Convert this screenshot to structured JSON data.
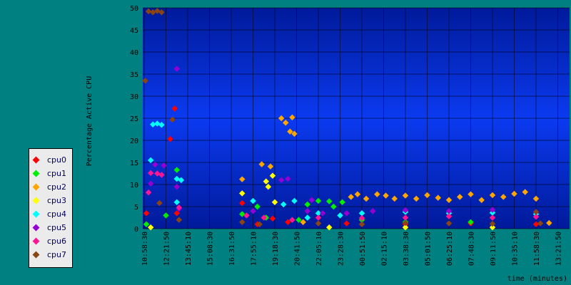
{
  "chart_data": {
    "type": "scatter",
    "title": "",
    "xlabel": "time (minutes)",
    "ylabel": "Percentage Active CPU",
    "ylim": [
      0,
      50
    ],
    "y_ticks": [
      0,
      5,
      10,
      15,
      20,
      25,
      30,
      35,
      40,
      45,
      50
    ],
    "x_ticks": [
      "10:58:30",
      "12:21:50",
      "13:45:10",
      "15:08:30",
      "16:31:50",
      "17:55:10",
      "19:18:30",
      "20:41:50",
      "22:05:10",
      "23:28:30",
      "00:51:50",
      "02:15:10",
      "03:38:30",
      "05:01:50",
      "06:25:10",
      "07:48:30",
      "09:11:50",
      "10:35:10",
      "11:58:30",
      "13:21:50"
    ],
    "grid": true,
    "legend_position": "left",
    "plot_background": "#0a2fd8",
    "page_background": "#008080",
    "series": [
      {
        "name": "cpu0",
        "color": "#ff0000",
        "points": [
          [
            0.1,
            3.5
          ],
          [
            1.2,
            20.3
          ],
          [
            1.4,
            27.2
          ],
          [
            1.5,
            3.5
          ],
          [
            4.5,
            5.8
          ],
          [
            5.2,
            1.0
          ],
          [
            5.9,
            2.3
          ],
          [
            6.6,
            1.5
          ],
          [
            9.3,
            1.2
          ],
          [
            12,
            1.0
          ],
          [
            15,
            1.2
          ],
          [
            18,
            1.0
          ]
        ]
      },
      {
        "name": "cpu1",
        "color": "#00ee00",
        "points": [
          [
            0.1,
            1.0
          ],
          [
            1.0,
            3.0
          ],
          [
            1.5,
            13.3
          ],
          [
            4.5,
            3.3
          ],
          [
            5.2,
            5.0
          ],
          [
            5.6,
            2.5
          ],
          [
            7.1,
            2.0
          ],
          [
            7.5,
            5.5
          ],
          [
            8.0,
            6.3
          ],
          [
            8.5,
            6.2
          ],
          [
            8.7,
            5.0
          ],
          [
            9.1,
            6.0
          ],
          [
            10,
            2.0
          ],
          [
            12,
            1.5
          ],
          [
            15,
            1.5
          ],
          [
            19.9,
            1.2
          ]
        ]
      },
      {
        "name": "cpu2",
        "color": "#ffa500",
        "points": [
          [
            4.5,
            11.2
          ],
          [
            5.4,
            14.6
          ],
          [
            5.8,
            14.1
          ],
          [
            6.3,
            25.0
          ],
          [
            6.5,
            24.0
          ],
          [
            6.7,
            22.0
          ],
          [
            6.8,
            25.2
          ],
          [
            6.9,
            21.5
          ],
          [
            7.3,
            1.5
          ],
          [
            9.5,
            7.2
          ],
          [
            9.8,
            7.8
          ],
          [
            10.2,
            6.8
          ],
          [
            10.7,
            7.8
          ],
          [
            11.1,
            7.5
          ],
          [
            11.5,
            6.8
          ],
          [
            12,
            7.5
          ],
          [
            12.5,
            6.8
          ],
          [
            13,
            7.6
          ],
          [
            13.5,
            7.0
          ],
          [
            14,
            6.5
          ],
          [
            14.5,
            7.2
          ],
          [
            15,
            7.8
          ],
          [
            15.5,
            6.5
          ],
          [
            16,
            7.6
          ],
          [
            16.5,
            7.2
          ],
          [
            17,
            7.9
          ],
          [
            17.5,
            8.3
          ],
          [
            18,
            6.8
          ],
          [
            18.6,
            1.3
          ],
          [
            19.8,
            5.2
          ]
        ]
      },
      {
        "name": "cpu3",
        "color": "#ffff00",
        "points": [
          [
            0.3,
            0.3
          ],
          [
            4.5,
            8.0
          ],
          [
            5.6,
            10.7
          ],
          [
            5.7,
            9.5
          ],
          [
            5.9,
            12.0
          ],
          [
            6.0,
            6.0
          ],
          [
            8.5,
            0.3
          ],
          [
            12,
            0.3
          ],
          [
            16,
            0.3
          ],
          [
            19.8,
            0.4
          ]
        ]
      },
      {
        "name": "cpu4",
        "color": "#00ffff",
        "points": [
          [
            0.3,
            15.5
          ],
          [
            0.4,
            23.6
          ],
          [
            0.6,
            23.8
          ],
          [
            0.8,
            23.5
          ],
          [
            1.5,
            11.3
          ],
          [
            1.5,
            6.0
          ],
          [
            1.7,
            11.0
          ],
          [
            5.0,
            6.3
          ],
          [
            6.4,
            5.5
          ],
          [
            6.9,
            6.3
          ],
          [
            7.5,
            2.5
          ],
          [
            8.0,
            3.5
          ],
          [
            9.0,
            3.0
          ],
          [
            10,
            3.5
          ],
          [
            12,
            3.8
          ],
          [
            14,
            3.5
          ],
          [
            16,
            3.6
          ],
          [
            18,
            3.3
          ],
          [
            19.8,
            5.2
          ],
          [
            19.9,
            2.6
          ]
        ]
      },
      {
        "name": "cpu5",
        "color": "#9400d3",
        "points": [
          [
            0.3,
            10.2
          ],
          [
            0.5,
            14.5
          ],
          [
            0.9,
            14.3
          ],
          [
            1.5,
            36.2
          ],
          [
            1.5,
            9.5
          ],
          [
            1.6,
            4.5
          ],
          [
            5.0,
            4.0
          ],
          [
            6.3,
            11.0
          ],
          [
            6.6,
            11.3
          ],
          [
            7.5,
            4.0
          ],
          [
            7.7,
            6.5
          ],
          [
            8.2,
            3.5
          ],
          [
            9.3,
            3.5
          ],
          [
            10.5,
            4.0
          ],
          [
            12,
            4.2
          ],
          [
            14,
            4.0
          ],
          [
            16,
            4.3
          ],
          [
            18,
            3.8
          ],
          [
            19.8,
            3.0
          ]
        ]
      },
      {
        "name": "cpu6",
        "color": "#ff1493",
        "points": [
          [
            0.2,
            8.2
          ],
          [
            0.3,
            12.6
          ],
          [
            0.6,
            12.5
          ],
          [
            0.8,
            12.2
          ],
          [
            1.6,
            4.8
          ],
          [
            4.7,
            3.0
          ],
          [
            5.5,
            2.5
          ],
          [
            6.8,
            2.0
          ],
          [
            8,
            2.5
          ],
          [
            10,
            2.4
          ],
          [
            12,
            2.5
          ],
          [
            14,
            2.8
          ],
          [
            16,
            2.5
          ],
          [
            18,
            2.7
          ],
          [
            19.9,
            1.5
          ]
        ]
      },
      {
        "name": "cpu7",
        "color": "#8b4513",
        "points": [
          [
            0.05,
            33.5
          ],
          [
            0.2,
            49.2
          ],
          [
            0.4,
            49.0
          ],
          [
            0.6,
            49.3
          ],
          [
            0.8,
            49.0
          ],
          [
            1.3,
            24.7
          ],
          [
            0.7,
            5.8
          ],
          [
            1.6,
            2.0
          ],
          [
            4.5,
            1.5
          ],
          [
            5.3,
            1.0
          ],
          [
            8,
            1.2
          ],
          [
            10,
            1.0
          ],
          [
            12,
            1.3
          ],
          [
            14,
            1.2
          ],
          [
            16,
            1.1
          ],
          [
            18,
            3.8
          ],
          [
            18.2,
            1.2
          ],
          [
            19.8,
            1.0
          ]
        ]
      }
    ]
  }
}
